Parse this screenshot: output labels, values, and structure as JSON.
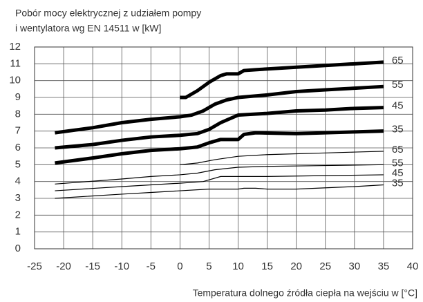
{
  "chart_data": {
    "type": "line",
    "title": [
      "Pobór mocy elektrycznej z udziałem pompy",
      "i wentylatora wg EN 14511 w [kW]"
    ],
    "x_label": "Temperatura dolnego źródła ciepła na wejściu w [°C]",
    "xlim": [
      -25,
      40
    ],
    "xticks": [
      -25,
      -20,
      -15,
      -10,
      -5,
      0,
      5,
      10,
      15,
      20,
      25,
      30,
      35,
      40
    ],
    "ylim": [
      0,
      12
    ],
    "yticks": [
      0,
      1,
      2,
      3,
      4,
      5,
      6,
      7,
      8,
      9,
      10,
      11,
      12
    ],
    "grid": true,
    "series": [
      {
        "name": "65",
        "color": "#000000",
        "width": 5,
        "x": [
          0,
          1,
          3,
          5,
          7,
          8,
          9,
          10,
          11,
          13,
          20,
          30,
          35
        ],
        "values": [
          9.0,
          9.0,
          9.4,
          9.9,
          10.3,
          10.4,
          10.4,
          10.4,
          10.6,
          10.65,
          10.8,
          11.0,
          11.1
        ]
      },
      {
        "name": "55",
        "color": "#000000",
        "width": 5,
        "x": [
          -21.5,
          -15,
          -10,
          -5,
          0,
          2,
          4,
          6,
          8,
          10,
          15,
          20,
          25,
          30,
          35
        ],
        "values": [
          6.9,
          7.2,
          7.5,
          7.7,
          7.85,
          7.95,
          8.2,
          8.6,
          8.85,
          9.0,
          9.15,
          9.35,
          9.45,
          9.55,
          9.65
        ]
      },
      {
        "name": "45",
        "color": "#000000",
        "width": 5,
        "x": [
          -21.5,
          -15,
          -10,
          -5,
          0,
          3,
          5,
          7,
          10,
          15,
          20,
          25,
          30,
          35
        ],
        "values": [
          6.0,
          6.2,
          6.45,
          6.65,
          6.75,
          6.85,
          7.1,
          7.5,
          7.95,
          8.05,
          8.2,
          8.25,
          8.35,
          8.4
        ]
      },
      {
        "name": "35",
        "color": "#000000",
        "width": 5,
        "x": [
          -21.5,
          -15,
          -10,
          -5,
          0,
          3,
          5,
          7,
          10,
          11,
          13,
          20,
          25,
          30,
          35
        ],
        "values": [
          5.1,
          5.4,
          5.65,
          5.85,
          5.95,
          6.05,
          6.3,
          6.5,
          6.5,
          6.8,
          6.9,
          6.85,
          6.9,
          6.95,
          7.0
        ]
      },
      {
        "name": "65",
        "color": "#000000",
        "width": 1.2,
        "x": [
          0,
          3,
          6,
          10,
          15,
          20,
          25,
          30,
          35
        ],
        "values": [
          5.0,
          5.1,
          5.3,
          5.5,
          5.6,
          5.65,
          5.7,
          5.75,
          5.8
        ]
      },
      {
        "name": "55",
        "color": "#000000",
        "width": 1.2,
        "x": [
          -21.5,
          -10,
          -5,
          0,
          3,
          6,
          10,
          15,
          25,
          35
        ],
        "values": [
          3.85,
          4.15,
          4.3,
          4.4,
          4.5,
          4.7,
          4.85,
          4.9,
          4.95,
          5.0
        ]
      },
      {
        "name": "45",
        "color": "#000000",
        "width": 1.2,
        "x": [
          -21.5,
          -10,
          -5,
          0,
          4,
          7,
          10,
          15,
          25,
          35
        ],
        "values": [
          3.45,
          3.7,
          3.8,
          3.9,
          4.0,
          4.3,
          4.3,
          4.3,
          4.35,
          4.4
        ]
      },
      {
        "name": "35",
        "color": "#000000",
        "width": 1.2,
        "x": [
          -21.5,
          -10,
          -5,
          0,
          5,
          10,
          11,
          13,
          15,
          20,
          30,
          35
        ],
        "values": [
          3.0,
          3.25,
          3.35,
          3.45,
          3.55,
          3.55,
          3.6,
          3.6,
          3.55,
          3.55,
          3.7,
          3.8
        ]
      }
    ]
  }
}
